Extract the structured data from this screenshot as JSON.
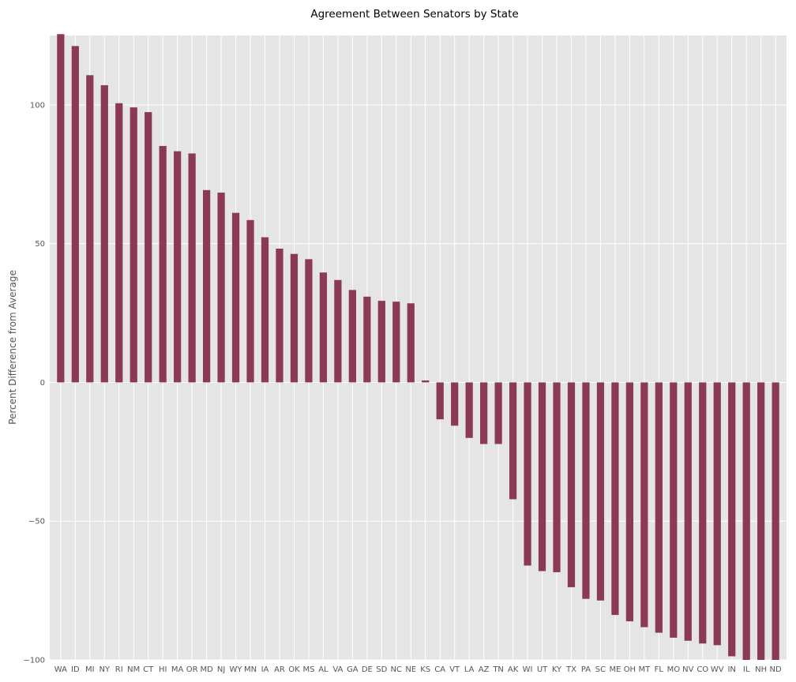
{
  "chart_data": {
    "type": "bar",
    "title": "Agreement Between Senators by State",
    "xlabel": "",
    "ylabel": "Percent Difference from Average",
    "ylim": [
      -100,
      125
    ],
    "yticks": [
      -100,
      -50,
      0,
      50,
      100
    ],
    "ytick_labels": [
      "−100",
      "−50",
      "0",
      "50",
      "100"
    ],
    "grid": true,
    "bar_color": "#8b3a55",
    "background_color": "#e5e5e5",
    "grid_color": "#ffffff",
    "categories": [
      "WA",
      "ID",
      "MI",
      "NY",
      "RI",
      "NM",
      "CT",
      "HI",
      "MA",
      "OR",
      "MD",
      "NJ",
      "WY",
      "MN",
      "IA",
      "AR",
      "OK",
      "MS",
      "AL",
      "VA",
      "GA",
      "DE",
      "SD",
      "NC",
      "NE",
      "KS",
      "CA",
      "VT",
      "LA",
      "AZ",
      "TN",
      "AK",
      "WI",
      "UT",
      "KY",
      "TX",
      "PA",
      "SC",
      "ME",
      "OH",
      "MT",
      "FL",
      "MO",
      "NV",
      "CO",
      "WV",
      "IN",
      "IL",
      "NH",
      "ND"
    ],
    "values": [
      125.5,
      121.2,
      110.7,
      107.1,
      100.6,
      99.1,
      97.4,
      85.2,
      83.3,
      82.5,
      69.3,
      68.4,
      61.1,
      58.5,
      52.3,
      48.2,
      46.3,
      44.4,
      39.6,
      36.9,
      33.3,
      30.9,
      29.4,
      29.1,
      28.5,
      0.7,
      -13.3,
      -15.6,
      -20.0,
      -22.2,
      -22.2,
      -42.1,
      -66.0,
      -68.0,
      -68.4,
      -73.8,
      -78.0,
      -78.6,
      -83.8,
      -86.1,
      -88.2,
      -90.2,
      -92.0,
      -93.1,
      -94.1,
      -94.7,
      -98.7,
      -100.0,
      -100.0,
      -100.0
    ]
  }
}
